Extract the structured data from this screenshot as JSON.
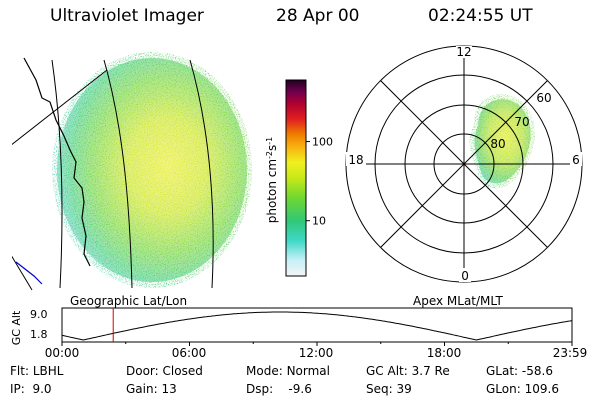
{
  "header": {
    "title": "Ultraviolet Imager",
    "date": "28 Apr 00",
    "time": "02:24:55 UT"
  },
  "colorbar": {
    "label": "photon cm",
    "label_sup1": "-2",
    "label_mid": "s",
    "label_sup2": "-1",
    "ticks": [
      {
        "value": 100,
        "label": "100"
      },
      {
        "value": 10,
        "label": "10"
      }
    ],
    "scale": "log",
    "colors": [
      "#f4f4f4",
      "#c8f0f8",
      "#40d8c8",
      "#30c878",
      "#70d830",
      "#c8e818",
      "#f0f020",
      "#f8b010",
      "#f08000",
      "#e02020",
      "#b00030",
      "#700050",
      "#300030"
    ]
  },
  "geo_panel": {
    "caption": "Geographic Lat/Lon"
  },
  "polar_panel": {
    "caption": "Apex MLat/MLT",
    "mlt_labels": {
      "top": "12",
      "right": "6",
      "bottom": "0",
      "left": "18"
    },
    "lat_labels": [
      "60",
      "70",
      "80"
    ]
  },
  "timeline": {
    "ylabel": "GC Alt",
    "yticks": [
      "9.0",
      "1.8"
    ],
    "xticks": [
      "00:00",
      "06:00",
      "12:00",
      "18:00",
      "23:59"
    ],
    "current_time_hours": 2.41
  },
  "info": {
    "flt_label": "Flt:",
    "flt_value": "LBHL",
    "ip_label": "IP:",
    "ip_value": "9.0",
    "door_label": "Door:",
    "door_value": "Closed",
    "gain_label": "Gain:",
    "gain_value": "13",
    "mode_label": "Mode:",
    "mode_value": "Normal",
    "dsp_label": "Dsp:",
    "dsp_value": "-9.6",
    "gcalt_label": "GC Alt:",
    "gcalt_value": "3.7 Re",
    "seq_label": "Seq:",
    "seq_value": "39",
    "glat_label": "GLat:",
    "glat_value": "-58.6",
    "glon_label": "GLon:",
    "glon_value": "109.6"
  }
}
